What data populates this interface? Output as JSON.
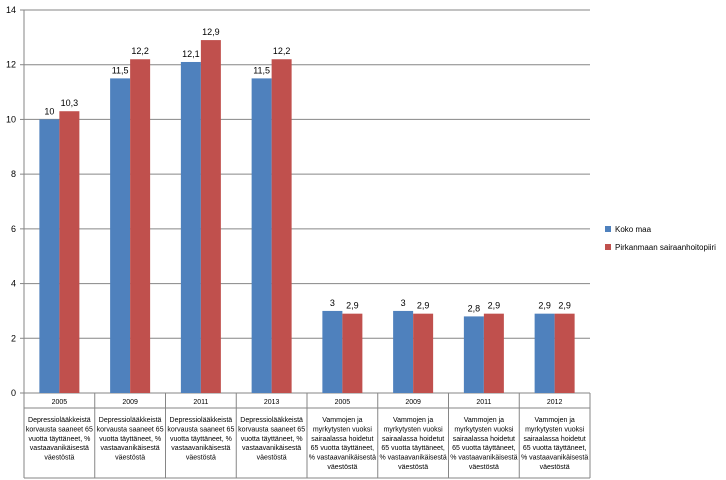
{
  "chart_data": {
    "type": "bar",
    "categories": [
      {
        "year": "2005",
        "label": [
          "Depressiolääkkeistä",
          "korvausta saaneet 65",
          "vuotta täyttäneet, %",
          "vastaavanikäisestä",
          "väestöstä"
        ]
      },
      {
        "year": "2009",
        "label": [
          "Depressiolääkkeistä",
          "korvausta saaneet 65",
          "vuotta täyttäneet, %",
          "vastaavanikäisestä",
          "väestöstä"
        ]
      },
      {
        "year": "2011",
        "label": [
          "Depressiolääkkeistä",
          "korvausta saaneet 65",
          "vuotta täyttäneet, %",
          "vastaavanikäisestä",
          "väestöstä"
        ]
      },
      {
        "year": "2013",
        "label": [
          "Depressiolääkkeistä",
          "korvausta saaneet 65",
          "vuotta täyttäneet, %",
          "vastaavanikäisestä",
          "väestöstä"
        ]
      },
      {
        "year": "2005",
        "label": [
          "Vammojen ja",
          "myrkytysten vuoksi",
          "sairaalassa hoidetut",
          "65 vuotta täyttäneet,",
          "% vastaavanikäisestä",
          "väestöstä"
        ]
      },
      {
        "year": "2009",
        "label": [
          "Vammojen ja",
          "myrkytysten vuoksi",
          "sairaalassa hoidetut",
          "65 vuotta täyttäneet,",
          "% vastaavanikäisestä",
          "väestöstä"
        ]
      },
      {
        "year": "2011",
        "label": [
          "Vammojen ja",
          "myrkytysten vuoksi",
          "sairaalassa hoidetut",
          "65 vuotta täyttäneet,",
          "% vastaavanikäisestä",
          "väestöstä"
        ]
      },
      {
        "year": "2012",
        "label": [
          "Vammojen ja",
          "myrkytysten vuoksi",
          "sairaalassa hoidetut",
          "65 vuotta täyttäneet,",
          "% vastaavanikäisestä",
          "väestöstä"
        ]
      }
    ],
    "series": [
      {
        "name": "Koko maa",
        "color": "#4f81bd",
        "values": [
          10,
          11.5,
          12.1,
          11.5,
          3,
          3,
          2.8,
          2.9
        ],
        "labels": [
          "10",
          "11,5",
          "12,1",
          "11,5",
          "3",
          "3",
          "2,8",
          "2,9"
        ]
      },
      {
        "name": "Pirkanmaan sairaanhoitopiiri",
        "color": "#c0504d",
        "values": [
          10.3,
          12.2,
          12.9,
          12.2,
          2.9,
          2.9,
          2.9,
          2.9
        ],
        "labels": [
          "10,3",
          "12,2",
          "12,9",
          "12,2",
          "2,9",
          "2,9",
          "2,9",
          "2,9"
        ]
      }
    ],
    "yticks": [
      "0",
      "2",
      "4",
      "6",
      "8",
      "10",
      "12",
      "14"
    ],
    "ylim": [
      0,
      14
    ],
    "grid": true,
    "legend": "right"
  }
}
